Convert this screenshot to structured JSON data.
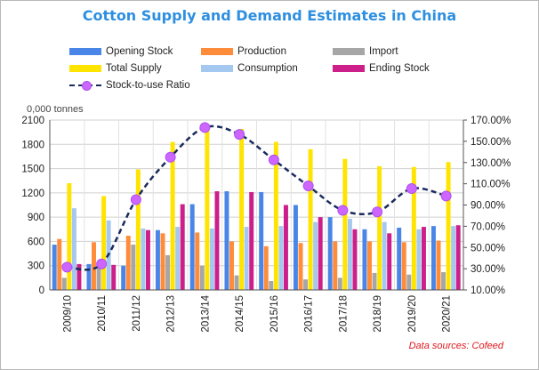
{
  "chart_data": {
    "type": "bar",
    "title": "Cotton Supply and Demand Estimates in China",
    "y_unit_label": "0,000 tonnes",
    "source_note": "Data sources: Cofeed",
    "categories": [
      "2009/10",
      "2010/11",
      "2011/12",
      "2012/13",
      "2013/14",
      "2014/15",
      "2015/16",
      "2016/17",
      "2017/18",
      "2018/19",
      "2019/20",
      "2020/21"
    ],
    "ylim": [
      0,
      2100
    ],
    "y_ticks": [
      "0",
      "300",
      "600",
      "900",
      "1200",
      "1500",
      "1800",
      "2100"
    ],
    "y2lim": [
      10,
      170
    ],
    "y2_ticks": [
      "10.00%",
      "30.00%",
      "50.00%",
      "70.00%",
      "90.00%",
      "110.00%",
      "130.00%",
      "150.00%",
      "170.00%"
    ],
    "grid": true,
    "legend_position": "top",
    "series": [
      {
        "name": "Opening Stock",
        "color": "#4a86e8",
        "values": [
          560,
          320,
          300,
          740,
          1060,
          1220,
          1210,
          1050,
          900,
          750,
          770,
          790
        ]
      },
      {
        "name": "Production",
        "color": "#ff8c3a",
        "values": [
          630,
          590,
          670,
          700,
          710,
          600,
          540,
          580,
          600,
          600,
          590,
          610
        ]
      },
      {
        "name": "Import",
        "color": "#a6a6a6",
        "values": [
          150,
          280,
          560,
          430,
          300,
          180,
          110,
          130,
          150,
          210,
          190,
          220
        ]
      },
      {
        "name": "Total Supply",
        "color": "#ffe400",
        "values": [
          1320,
          1160,
          1490,
          1830,
          2010,
          1990,
          1830,
          1740,
          1620,
          1530,
          1520,
          1580
        ]
      },
      {
        "name": "Consumption",
        "color": "#a4c8f0",
        "values": [
          1010,
          860,
          760,
          780,
          760,
          780,
          790,
          840,
          880,
          840,
          750,
          790
        ]
      },
      {
        "name": "Ending Stock",
        "color": "#cc1f8a",
        "values": [
          320,
          310,
          740,
          1060,
          1220,
          1210,
          1050,
          900,
          750,
          700,
          780,
          800
        ]
      }
    ],
    "line_series": {
      "name": "Stock-to-use Ratio",
      "axis": "right",
      "color": "#1a2a5e",
      "marker_color": "#cc66ff",
      "values": [
        31.5,
        34.5,
        95.0,
        135.0,
        163.0,
        156.5,
        132.5,
        108.0,
        85.0,
        83.5,
        105.5,
        98.5
      ]
    }
  }
}
